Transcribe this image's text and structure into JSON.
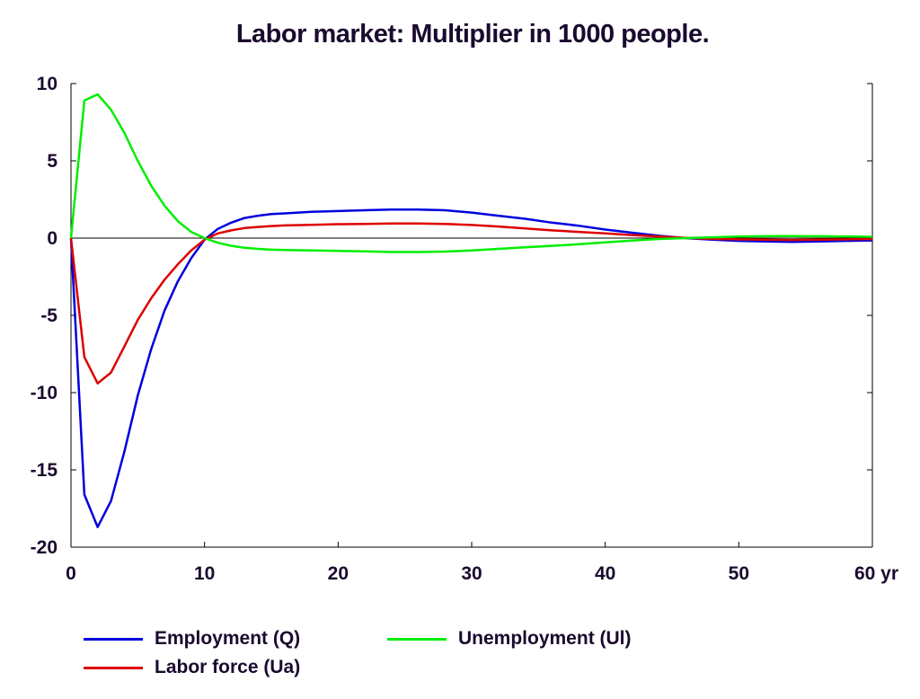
{
  "chart_data": {
    "type": "line",
    "title": "Labor market: Multiplier in 1000 people.",
    "xlabel": "",
    "ylabel": "",
    "xlim": [
      0,
      60
    ],
    "ylim": [
      -20,
      10
    ],
    "x_ticks": [
      "0",
      "10",
      "20",
      "30",
      "40",
      "50",
      "60 yr"
    ],
    "y_ticks": [
      "10",
      "5",
      "0",
      "-5",
      "-10",
      "-15",
      "-20"
    ],
    "x_tick_values": [
      0,
      10,
      20,
      30,
      40,
      50,
      60
    ],
    "y_tick_values": [
      10,
      5,
      0,
      -5,
      -10,
      -15,
      -20
    ],
    "grid": false,
    "zero_line": true,
    "legend_position": "bottom",
    "x": [
      0,
      1,
      2,
      3,
      4,
      5,
      6,
      7,
      8,
      9,
      10,
      11,
      12,
      13,
      14,
      15,
      16,
      18,
      20,
      22,
      24,
      26,
      28,
      30,
      32,
      34,
      36,
      38,
      40,
      42,
      44,
      46,
      48,
      50,
      52,
      54,
      56,
      58,
      60
    ],
    "series": [
      {
        "name": "Employment (Q)",
        "color": "#0000dd",
        "values": [
          0,
          -16.6,
          -18.7,
          -17.0,
          -13.8,
          -10.2,
          -7.2,
          -4.7,
          -2.8,
          -1.3,
          -0.1,
          0.6,
          1.0,
          1.3,
          1.45,
          1.55,
          1.6,
          1.7,
          1.75,
          1.8,
          1.85,
          1.85,
          1.8,
          1.65,
          1.45,
          1.25,
          1.0,
          0.8,
          0.55,
          0.35,
          0.15,
          0.0,
          -0.1,
          -0.18,
          -0.22,
          -0.25,
          -0.22,
          -0.18,
          -0.15
        ]
      },
      {
        "name": "Labor force (Ua)",
        "color": "#dd0000",
        "values": [
          0,
          -7.7,
          -9.4,
          -8.7,
          -7.0,
          -5.3,
          -3.9,
          -2.7,
          -1.7,
          -0.8,
          -0.1,
          0.3,
          0.5,
          0.65,
          0.72,
          0.78,
          0.82,
          0.86,
          0.9,
          0.92,
          0.95,
          0.95,
          0.92,
          0.85,
          0.75,
          0.62,
          0.5,
          0.4,
          0.3,
          0.2,
          0.1,
          0.02,
          -0.05,
          -0.08,
          -0.1,
          -0.12,
          -0.1,
          -0.08,
          -0.06
        ]
      },
      {
        "name": "Unemployment (Ul)",
        "color": "#00ee00",
        "values": [
          0,
          8.9,
          9.3,
          8.3,
          6.8,
          5.0,
          3.4,
          2.1,
          1.1,
          0.4,
          0.0,
          -0.3,
          -0.5,
          -0.62,
          -0.7,
          -0.75,
          -0.77,
          -0.8,
          -0.83,
          -0.86,
          -0.9,
          -0.9,
          -0.87,
          -0.8,
          -0.7,
          -0.6,
          -0.5,
          -0.4,
          -0.28,
          -0.16,
          -0.06,
          0.0,
          0.05,
          0.1,
          0.12,
          0.13,
          0.12,
          0.1,
          0.09
        ]
      }
    ]
  }
}
